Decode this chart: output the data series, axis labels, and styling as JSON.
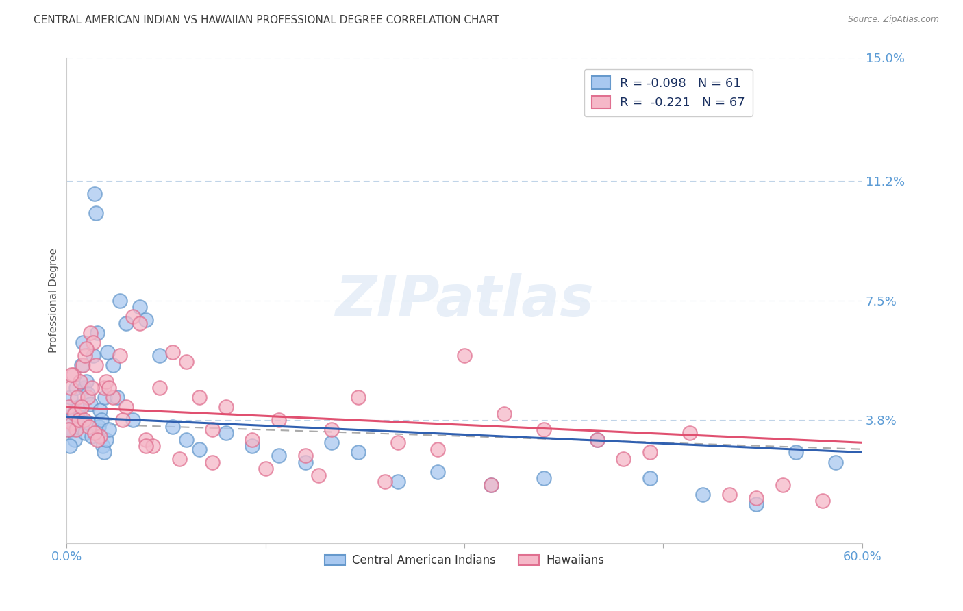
{
  "title": "CENTRAL AMERICAN INDIAN VS HAWAIIAN PROFESSIONAL DEGREE CORRELATION CHART",
  "source": "Source: ZipAtlas.com",
  "ylabel": "Professional Degree",
  "watermark": "ZIPatlas",
  "xlim": [
    0.0,
    60.0
  ],
  "ylim": [
    0.0,
    15.0
  ],
  "ytick_vals": [
    3.8,
    7.5,
    11.2,
    15.0
  ],
  "ytick_labels": [
    "3.8%",
    "7.5%",
    "11.2%",
    "15.0%"
  ],
  "blue_color": "#a8c8f0",
  "blue_edge": "#6699cc",
  "pink_color": "#f5b8c8",
  "pink_edge": "#e07090",
  "axis_label_color": "#5b9bd5",
  "title_color": "#404040",
  "blue_line_color": "#3060b0",
  "pink_line_color": "#e05070",
  "dash_line_color": "#aaaaaa",
  "legend_text_color": "#1a1a2e",
  "legend_val_color": "#3060b0",
  "blue_scatter_x": [
    0.2,
    0.3,
    0.4,
    0.5,
    0.6,
    0.7,
    0.8,
    0.9,
    1.0,
    1.1,
    1.2,
    1.3,
    1.4,
    1.5,
    1.6,
    1.7,
    1.8,
    1.9,
    2.0,
    2.1,
    2.2,
    2.3,
    2.4,
    2.5,
    2.6,
    2.7,
    2.8,
    2.9,
    3.0,
    3.1,
    3.2,
    3.5,
    3.8,
    4.0,
    4.5,
    5.0,
    5.5,
    6.0,
    7.0,
    8.0,
    9.0,
    10.0,
    12.0,
    14.0,
    16.0,
    18.0,
    20.0,
    22.0,
    25.0,
    28.0,
    32.0,
    36.0,
    40.0,
    44.0,
    48.0,
    52.0,
    55.0,
    58.0,
    0.15,
    0.25,
    0.35
  ],
  "blue_scatter_y": [
    3.8,
    4.5,
    3.5,
    4.0,
    3.2,
    4.8,
    3.6,
    4.2,
    3.9,
    5.5,
    6.2,
    4.8,
    3.4,
    5.0,
    4.6,
    3.7,
    4.3,
    3.3,
    5.8,
    10.8,
    10.2,
    6.5,
    3.6,
    4.1,
    3.8,
    3.0,
    2.8,
    4.5,
    3.2,
    5.9,
    3.5,
    5.5,
    4.5,
    7.5,
    6.8,
    3.8,
    7.3,
    6.9,
    5.8,
    3.6,
    3.2,
    2.9,
    3.4,
    3.0,
    2.7,
    2.5,
    3.1,
    2.8,
    1.9,
    2.2,
    1.8,
    2.0,
    3.2,
    2.0,
    1.5,
    1.2,
    2.8,
    2.5,
    3.5,
    3.0,
    3.8
  ],
  "pink_scatter_x": [
    0.2,
    0.3,
    0.4,
    0.5,
    0.6,
    0.7,
    0.8,
    0.9,
    1.0,
    1.2,
    1.4,
    1.6,
    1.8,
    2.0,
    2.2,
    2.5,
    2.8,
    3.0,
    3.5,
    4.0,
    4.5,
    5.0,
    5.5,
    6.0,
    6.5,
    7.0,
    8.0,
    9.0,
    10.0,
    11.0,
    12.0,
    14.0,
    16.0,
    18.0,
    20.0,
    22.0,
    25.0,
    28.0,
    30.0,
    33.0,
    36.0,
    40.0,
    44.0,
    47.0,
    50.0,
    54.0,
    57.0,
    0.15,
    0.35,
    1.1,
    1.3,
    1.5,
    1.7,
    1.9,
    2.1,
    2.3,
    3.2,
    4.2,
    6.0,
    8.5,
    11.0,
    15.0,
    19.0,
    24.0,
    32.0,
    42.0,
    52.0
  ],
  "pink_scatter_y": [
    4.2,
    4.8,
    3.7,
    5.2,
    4.0,
    3.5,
    4.5,
    3.8,
    5.0,
    5.5,
    5.8,
    4.5,
    6.5,
    6.2,
    5.5,
    3.3,
    4.8,
    5.0,
    4.5,
    5.8,
    4.2,
    7.0,
    6.8,
    3.2,
    3.0,
    4.8,
    5.9,
    5.6,
    4.5,
    3.5,
    4.2,
    3.2,
    3.8,
    2.7,
    3.5,
    4.5,
    3.1,
    2.9,
    5.8,
    4.0,
    3.5,
    3.2,
    2.8,
    3.4,
    1.5,
    1.8,
    1.3,
    3.5,
    5.2,
    4.2,
    3.8,
    6.0,
    3.6,
    4.8,
    3.4,
    3.2,
    4.8,
    3.8,
    3.0,
    2.6,
    2.5,
    2.3,
    2.1,
    1.9,
    1.8,
    2.6,
    1.4
  ],
  "blue_trend_start_y": 3.9,
  "blue_trend_end_y": 2.8,
  "pink_trend_start_y": 4.2,
  "pink_trend_end_y": 3.1,
  "dash_trend_start_y": 3.7,
  "dash_trend_end_y": 2.9
}
